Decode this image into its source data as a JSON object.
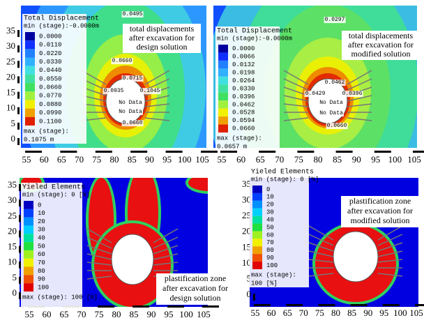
{
  "panels": [
    {
      "legend": {
        "title": "Total Displacement",
        "min": "min (stage):-0.0000m",
        "entries": [
          {
            "label": "0.0000",
            "color": "#0000a0"
          },
          {
            "label": "0.0110",
            "color": "#1030ff"
          },
          {
            "label": "0.0220",
            "color": "#2080ff"
          },
          {
            "label": "0.0330",
            "color": "#30b0ff"
          },
          {
            "label": "0.0440",
            "color": "#40e0e0"
          },
          {
            "label": "0.0550",
            "color": "#40e0a0"
          },
          {
            "label": "0.0660",
            "color": "#40e060"
          },
          {
            "label": "0.0770",
            "color": "#a0f040"
          },
          {
            "label": "0.0880",
            "color": "#f0f000"
          },
          {
            "label": "0.0990",
            "color": "#f0a000"
          },
          {
            "label": "0.1100",
            "color": "#e02000"
          }
        ],
        "max": "max (stage):",
        "max_value": "0.1075 m"
      },
      "annotation": [
        "total displacements",
        "after excavation for",
        "design solution"
      ],
      "value_labels": [
        "0.0495",
        "0.0660",
        "0.0715",
        "0.0935",
        "0.1045",
        "No Data",
        "No Data",
        "0.0660"
      ],
      "x_ticks": [
        55,
        60,
        65,
        70,
        75,
        80,
        85,
        90,
        95,
        100,
        105
      ],
      "y_ticks": [
        35,
        30,
        25,
        20,
        15,
        10,
        5,
        0
      ]
    },
    {
      "legend": {
        "title": "Total Displacement",
        "min": "min (stage):-0.0000m",
        "entries": [
          {
            "label": "0.0000",
            "color": "#0000a0"
          },
          {
            "label": "0.0066",
            "color": "#1030ff"
          },
          {
            "label": "0.0132",
            "color": "#2080ff"
          },
          {
            "label": "0.0198",
            "color": "#30b0ff"
          },
          {
            "label": "0.0264",
            "color": "#40e0e0"
          },
          {
            "label": "0.0330",
            "color": "#40e0a0"
          },
          {
            "label": "0.0396",
            "color": "#40e060"
          },
          {
            "label": "0.0462",
            "color": "#a0f040"
          },
          {
            "label": "0.0528",
            "color": "#f0f000"
          },
          {
            "label": "0.0594",
            "color": "#f0a000"
          },
          {
            "label": "0.0660",
            "color": "#e02000"
          }
        ],
        "max": "max (stage):",
        "max_value": "0.0657 m"
      },
      "annotation": [
        "total displacements",
        "after excavation for",
        "modified solution"
      ],
      "value_labels": [
        "0.0297",
        "0.0462",
        "0.0429",
        "0.0396",
        "No Data",
        "No Data",
        "0.0660"
      ],
      "x_ticks": [
        55,
        60,
        65,
        70,
        75,
        80,
        85,
        90,
        95,
        100,
        105
      ],
      "y_ticks": []
    },
    {
      "legend": {
        "title": "Yieled Elements",
        "min": "min (stage): 0 [%]",
        "entries": [
          {
            "label": "0",
            "color": "#0000c0"
          },
          {
            "label": "10",
            "color": "#0040ff"
          },
          {
            "label": "20",
            "color": "#0090ff"
          },
          {
            "label": "30",
            "color": "#00d0ff"
          },
          {
            "label": "40",
            "color": "#00e0a0"
          },
          {
            "label": "50",
            "color": "#20e040"
          },
          {
            "label": "60",
            "color": "#a0f020"
          },
          {
            "label": "70",
            "color": "#f0f000"
          },
          {
            "label": "80",
            "color": "#f0a000"
          },
          {
            "label": "90",
            "color": "#f05000"
          },
          {
            "label": "100",
            "color": "#e00000"
          }
        ],
        "max": "max (stage): 100 [%]",
        "max_value": null
      },
      "annotation": [
        "plastification zone",
        "after excavation for",
        "design solution"
      ],
      "value_labels": [],
      "x_ticks": [
        55,
        60,
        65,
        70,
        75,
        80,
        85,
        90,
        95,
        100,
        105
      ],
      "y_ticks": [
        35,
        30,
        25,
        20,
        15,
        10,
        5,
        0
      ]
    },
    {
      "legend": {
        "title": "Yieled Elements",
        "min": "min (stage): 0 [%]",
        "entries": [
          {
            "label": "0",
            "color": "#0000c0"
          },
          {
            "label": "10",
            "color": "#0040ff"
          },
          {
            "label": "20",
            "color": "#0090ff"
          },
          {
            "label": "30",
            "color": "#00d0ff"
          },
          {
            "label": "40",
            "color": "#00e0a0"
          },
          {
            "label": "50",
            "color": "#20e040"
          },
          {
            "label": "60",
            "color": "#a0f020"
          },
          {
            "label": "70",
            "color": "#f0f000"
          },
          {
            "label": "80",
            "color": "#f0a000"
          },
          {
            "label": "90",
            "color": "#f05000"
          },
          {
            "label": "100",
            "color": "#e00000"
          }
        ],
        "max": "max (stage):",
        "max_value": "100 [%]"
      },
      "annotation": [
        "plastification zone",
        "after excavation for",
        "modified solution"
      ],
      "value_labels": [],
      "x_ticks": [
        55,
        60,
        65,
        70,
        75,
        80,
        85,
        90,
        95,
        100,
        105
      ],
      "y_ticks": [
        35,
        30,
        25,
        20,
        15,
        10,
        5,
        0
      ]
    }
  ]
}
